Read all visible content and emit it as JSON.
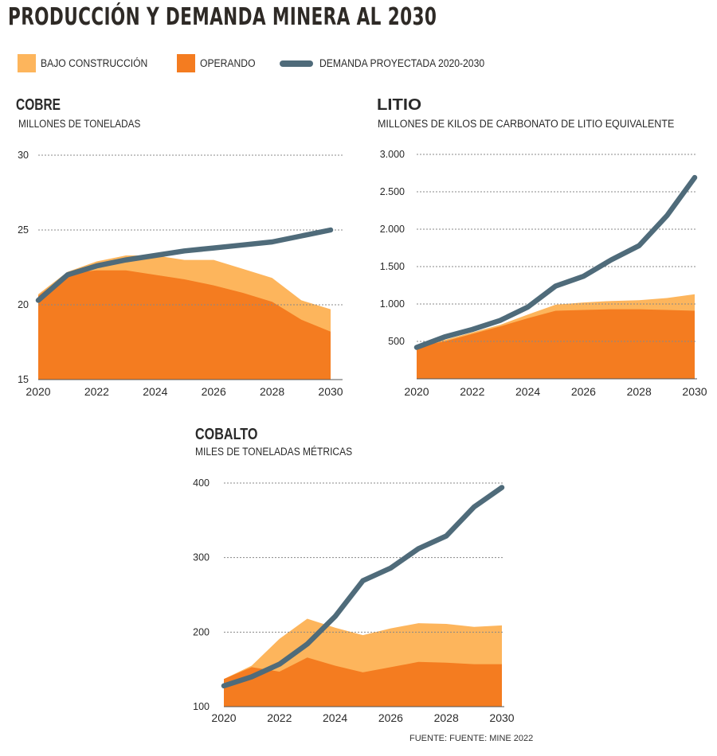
{
  "title": "PRODUCCIÓN Y DEMANDA MINERA AL 2030",
  "legend": [
    {
      "label": "BAJO CONSTRUCCIÓN",
      "color": "#FDB55C",
      "kind": "area"
    },
    {
      "label": "OPERANDO",
      "color": "#F47C20",
      "kind": "area"
    },
    {
      "label": "DEMANDA PROYECTADA 2020-2030",
      "color": "#4F6B7A",
      "kind": "line"
    }
  ],
  "source": "FUENTE: FUENTE: MINE 2022",
  "colors": {
    "under_construction": "#FDB55C",
    "operating": "#F47C20",
    "demand": "#4F6B7A",
    "grid": "#888888"
  },
  "chart_data": [
    {
      "type": "area",
      "title": "COBRE",
      "subtitle": "MILLONES DE TONELADAS",
      "x": [
        2020,
        2021,
        2022,
        2023,
        2024,
        2025,
        2026,
        2027,
        2028,
        2029,
        2030
      ],
      "xticks": [
        2020,
        2022,
        2024,
        2026,
        2028,
        2030
      ],
      "xtick_labels": [
        "2020",
        "2022",
        "2024",
        "2026",
        "2028",
        "2030"
      ],
      "xlim": [
        2020,
        2030
      ],
      "ylim": [
        15,
        30
      ],
      "yticks": [
        15,
        20,
        25,
        30
      ],
      "ytick_labels": [
        "15",
        "20",
        "25",
        "30"
      ],
      "grid": true,
      "series": [
        {
          "name": "OPERANDO",
          "values": [
            20.6,
            22.1,
            22.3,
            22.3,
            22.0,
            21.7,
            21.3,
            20.8,
            20.2,
            19.0,
            18.2
          ]
        },
        {
          "name": "BAJO CONSTRUCCIÓN",
          "values": [
            20.7,
            22.2,
            22.9,
            23.3,
            23.3,
            23.0,
            23.0,
            22.4,
            21.8,
            20.3,
            19.7
          ]
        },
        {
          "name": "DEMANDA PROYECTADA 2020-2030",
          "values": [
            20.3,
            22.0,
            22.6,
            23.0,
            23.3,
            23.6,
            23.8,
            24.0,
            24.2,
            24.6,
            25.0
          ]
        }
      ]
    },
    {
      "type": "area",
      "title": "LITIO",
      "subtitle": "MILLONES DE KILOS DE CARBONATO DE LITIO EQUIVALENTE",
      "x": [
        2020,
        2021,
        2022,
        2023,
        2024,
        2025,
        2026,
        2027,
        2028,
        2029,
        2030
      ],
      "xticks": [
        2020,
        2022,
        2024,
        2026,
        2028,
        2030
      ],
      "xtick_labels": [
        "2020",
        "2022",
        "2024",
        "2026",
        "2028",
        "2030"
      ],
      "xlim": [
        2020,
        2030
      ],
      "ylim": [
        0,
        3000
      ],
      "yticks": [
        500,
        1000,
        1500,
        2000,
        2500,
        3000
      ],
      "ytick_labels": [
        "500",
        "1.000",
        "1.500",
        "2.000",
        "2.500",
        "3.000"
      ],
      "grid": true,
      "series": [
        {
          "name": "OPERANDO",
          "values": [
            430,
            500,
            600,
            700,
            810,
            910,
            920,
            930,
            930,
            920,
            910
          ]
        },
        {
          "name": "BAJO CONSTRUCCIÓN",
          "values": [
            430,
            520,
            620,
            720,
            860,
            990,
            1020,
            1040,
            1050,
            1080,
            1130
          ]
        },
        {
          "name": "DEMANDA PROYECTADA 2020-2030",
          "values": [
            420,
            560,
            660,
            780,
            960,
            1240,
            1370,
            1590,
            1780,
            2180,
            2690
          ]
        }
      ]
    },
    {
      "type": "area",
      "title": "COBALTO",
      "subtitle": "MILES DE TONELADAS MÉTRICAS",
      "x": [
        2020,
        2021,
        2022,
        2023,
        2024,
        2025,
        2026,
        2027,
        2028,
        2029,
        2030
      ],
      "xticks": [
        2020,
        2022,
        2024,
        2026,
        2028,
        2030
      ],
      "xtick_labels": [
        "2020",
        "2022",
        "2024",
        "2026",
        "2028",
        "2030"
      ],
      "xlim": [
        2020,
        2030
      ],
      "ylim": [
        100,
        400
      ],
      "yticks": [
        100,
        200,
        300,
        400
      ],
      "ytick_labels": [
        "100",
        "200",
        "300",
        "400"
      ],
      "grid": true,
      "series": [
        {
          "name": "OPERANDO",
          "values": [
            137,
            153,
            147,
            166,
            155,
            146,
            153,
            160,
            159,
            157,
            157
          ]
        },
        {
          "name": "BAJO CONSTRUCCIÓN",
          "values": [
            137,
            155,
            191,
            218,
            206,
            196,
            205,
            212,
            211,
            207,
            209
          ]
        },
        {
          "name": "DEMANDA PROYECTADA 2020-2030",
          "values": [
            128,
            140,
            157,
            184,
            221,
            269,
            286,
            312,
            329,
            368,
            394
          ]
        }
      ]
    }
  ]
}
